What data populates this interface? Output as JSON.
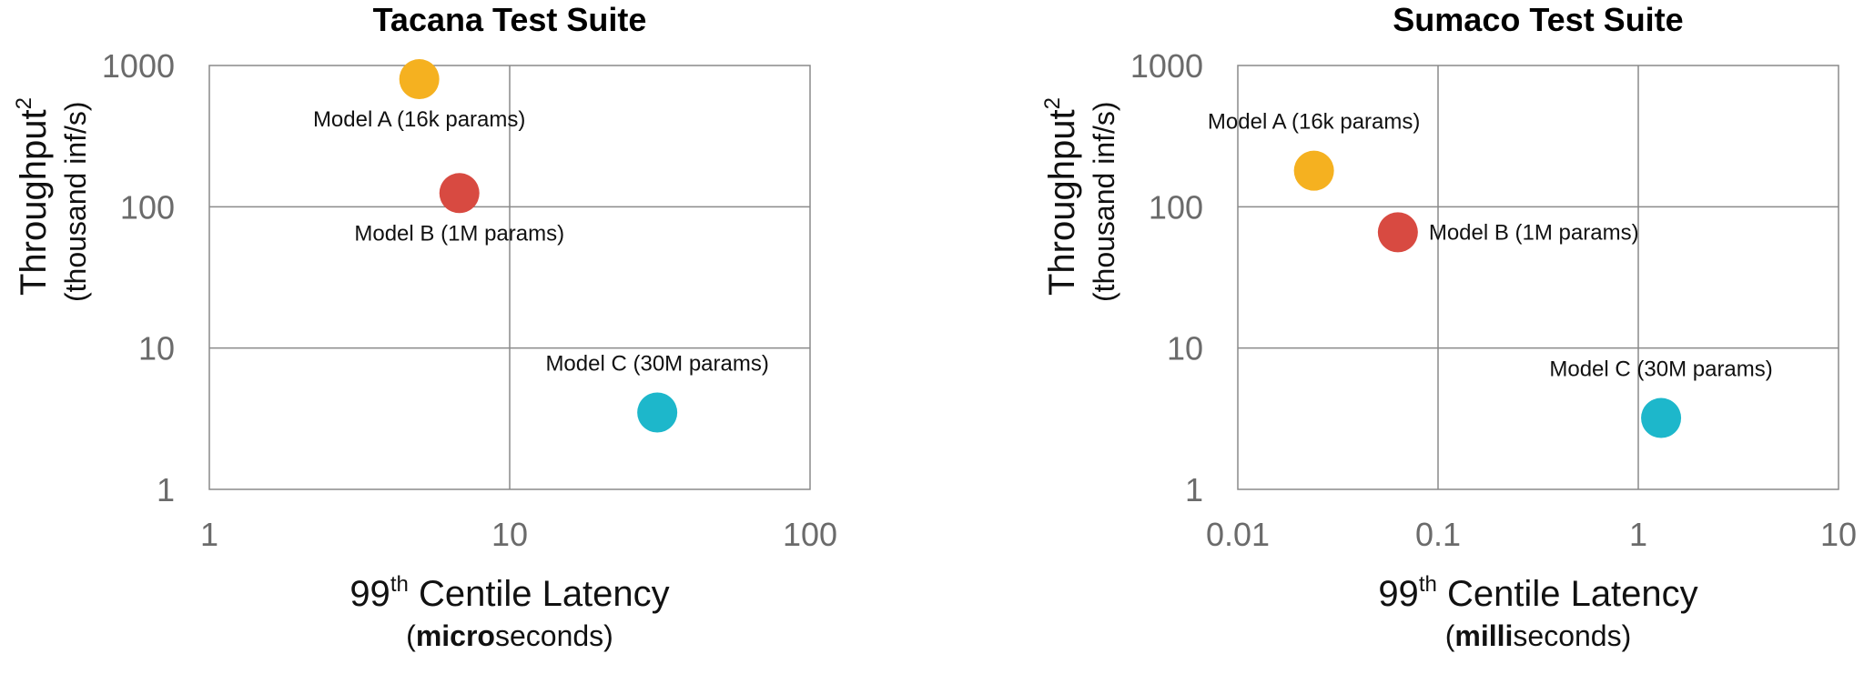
{
  "chart_data": [
    {
      "type": "scatter",
      "title": "Tacana Test Suite",
      "xlabel": {
        "prefix": "99",
        "superscript": "th",
        "main": " Centile Latency",
        "unit_open": "(",
        "unit_bold": "micro",
        "unit_rest": "seconds)"
      },
      "ylabel": {
        "main": "Throughput",
        "superscript": "2",
        "unit": "(thousand inf/s)"
      },
      "xscale": "log",
      "yscale": "log",
      "xlim": [
        1,
        100
      ],
      "ylim": [
        1,
        1000
      ],
      "xticks": [
        {
          "value": 1,
          "label": "1"
        },
        {
          "value": 10,
          "label": "10"
        },
        {
          "value": 100,
          "label": "100"
        }
      ],
      "yticks": [
        {
          "value": 1,
          "label": "1"
        },
        {
          "value": 10,
          "label": "10"
        },
        {
          "value": 100,
          "label": "100"
        },
        {
          "value": 1000,
          "label": "1000"
        }
      ],
      "grid": true,
      "points": [
        {
          "label": "Model A (16k params)",
          "x": 5.0,
          "y": 800,
          "color": "#F5B120",
          "label_position": "below"
        },
        {
          "label": "Model B (1M params)",
          "x": 6.8,
          "y": 125,
          "color": "#D84A41",
          "label_position": "below"
        },
        {
          "label": "Model C (30M params)",
          "x": 31,
          "y": 3.5,
          "color": "#1DB7CB",
          "label_position": "above"
        }
      ]
    },
    {
      "type": "scatter",
      "title": "Sumaco Test Suite",
      "xlabel": {
        "prefix": "99",
        "superscript": "th",
        "main": " Centile Latency",
        "unit_open": "(",
        "unit_bold": "milli",
        "unit_rest": "seconds)"
      },
      "ylabel": {
        "main": "Throughput",
        "superscript": "2",
        "unit": "(thousand inf/s)"
      },
      "xscale": "log",
      "yscale": "log",
      "xlim": [
        0.01,
        10
      ],
      "ylim": [
        1,
        1000
      ],
      "xticks": [
        {
          "value": 0.01,
          "label": "0.01"
        },
        {
          "value": 0.1,
          "label": "0.1"
        },
        {
          "value": 1,
          "label": "1"
        },
        {
          "value": 10,
          "label": "10"
        }
      ],
      "yticks": [
        {
          "value": 1,
          "label": "1"
        },
        {
          "value": 10,
          "label": "10"
        },
        {
          "value": 100,
          "label": "100"
        },
        {
          "value": 1000,
          "label": "1000"
        }
      ],
      "grid": true,
      "points": [
        {
          "label": "Model A (16k params)",
          "x": 0.024,
          "y": 180,
          "color": "#F5B120",
          "label_position": "above"
        },
        {
          "label": "Model B (1M params)",
          "x": 0.063,
          "y": 66,
          "color": "#D84A41",
          "label_position": "right"
        },
        {
          "label": "Model C (30M params)",
          "x": 1.3,
          "y": 3.2,
          "color": "#1DB7CB",
          "label_position": "above"
        }
      ]
    }
  ]
}
